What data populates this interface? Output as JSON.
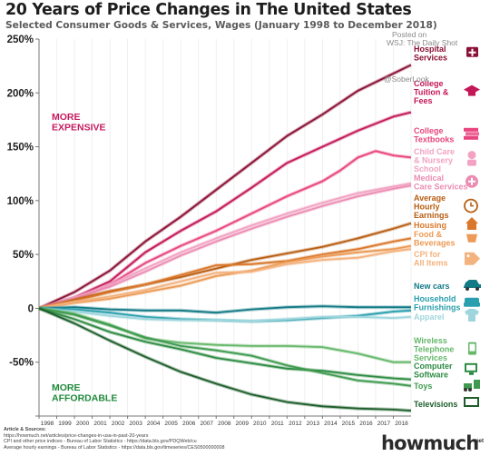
{
  "header": {
    "title": "20 Years of Price Changes in The United States",
    "subtitle": "Selected Consumer Goods & Services, Wages (January 1998 to December 2018)"
  },
  "credits": {
    "posted_on": "Posted on",
    "source": "WSJ: The Daily Shot",
    "twitter": "@SoberLook"
  },
  "sources": {
    "heading": "Article & Sources:",
    "lines": [
      "https://howmuch.net/articles/price-changes-in-usa-in-past-20-years",
      "CPI and other price indices - Bureau of Labor Statistics - https://data.bls.gov/PDQWeb/cu",
      "Average hourly earnings - Bureau of Labor Statistics - https://data.bls.gov/timeseries/CES0500000008"
    ]
  },
  "logo": {
    "name": "howmuch",
    "suffix": "net"
  },
  "chart_data": {
    "type": "line",
    "title": "20 Years of Price Changes in The United States",
    "subtitle": "Selected Consumer Goods & Services, Wages (January 1998 to December 2018)",
    "x_ticks": [
      "1998",
      "1999",
      "2000",
      "2001",
      "2002",
      "2003",
      "2004",
      "2005",
      "2006",
      "2007",
      "2008",
      "2009",
      "2010",
      "2011",
      "2012",
      "2013",
      "2014",
      "2015",
      "2016",
      "2017",
      "2018"
    ],
    "xlim": [
      1998,
      2019
    ],
    "ylim": [
      -100,
      250
    ],
    "y_ticks": [
      -100,
      -50,
      0,
      50,
      100,
      150,
      200,
      250
    ],
    "y_tick_labels": [
      "",
      "-50%",
      "0",
      "50%",
      "100%",
      "150%",
      "200%",
      "250%"
    ],
    "grid": "vertical",
    "annotations": [
      {
        "text": "MORE EXPENSIVE",
        "color": "#c51a5e"
      },
      {
        "text": "MORE AFFORDABLE",
        "color": "#1f8a3a"
      }
    ],
    "series": [
      {
        "name": "Hospital Services",
        "color": "#8b1035",
        "icon": "hospital-icon",
        "x": [
          1998,
          2000,
          2002,
          2004,
          2006,
          2008,
          2010,
          2012,
          2014,
          2016,
          2018,
          2019
        ],
        "values": [
          0,
          15,
          35,
          62,
          85,
          110,
          135,
          160,
          180,
          202,
          218,
          226
        ]
      },
      {
        "name": "College Tuition & Fees",
        "color": "#c41757",
        "icon": "graduation-cap-icon",
        "x": [
          1998,
          2000,
          2002,
          2004,
          2006,
          2008,
          2010,
          2012,
          2014,
          2016,
          2018,
          2019
        ],
        "values": [
          0,
          10,
          25,
          52,
          72,
          90,
          112,
          135,
          150,
          165,
          178,
          182
        ]
      },
      {
        "name": "College Textbooks",
        "color": "#e8457e",
        "icon": "books-icon",
        "x": [
          1998,
          2000,
          2002,
          2004,
          2006,
          2008,
          2010,
          2012,
          2014,
          2015,
          2016,
          2017,
          2018,
          2019
        ],
        "values": [
          0,
          8,
          22,
          42,
          58,
          72,
          88,
          104,
          118,
          128,
          140,
          146,
          142,
          140
        ]
      },
      {
        "name": "Child Care & Nursery School",
        "color": "#f2a2c2",
        "icon": "child-icon",
        "x": [
          1998,
          2000,
          2002,
          2004,
          2006,
          2008,
          2010,
          2012,
          2014,
          2016,
          2018,
          2019
        ],
        "values": [
          0,
          10,
          22,
          37,
          52,
          65,
          77,
          88,
          98,
          107,
          113,
          116
        ]
      },
      {
        "name": "Medical Care Services",
        "color": "#eb8db3",
        "icon": "medical-icon",
        "x": [
          1998,
          2000,
          2002,
          2004,
          2006,
          2008,
          2010,
          2012,
          2014,
          2016,
          2018,
          2019
        ],
        "values": [
          0,
          9,
          20,
          34,
          49,
          62,
          74,
          85,
          95,
          104,
          111,
          114
        ]
      },
      {
        "name": "Average Hourly Earnings",
        "color": "#b85d12",
        "icon": "clock-dollar-icon",
        "x": [
          1998,
          2000,
          2002,
          2004,
          2006,
          2008,
          2010,
          2012,
          2014,
          2016,
          2018,
          2019
        ],
        "values": [
          0,
          8,
          16,
          22,
          29,
          37,
          45,
          51,
          57,
          65,
          74,
          79
        ]
      },
      {
        "name": "Housing",
        "color": "#d9772a",
        "icon": "house-icon",
        "x": [
          1998,
          2000,
          2002,
          2004,
          2006,
          2008,
          2010,
          2012,
          2014,
          2016,
          2018,
          2019
        ],
        "values": [
          0,
          7,
          15,
          22,
          31,
          40,
          41,
          44,
          50,
          55,
          62,
          65
        ]
      },
      {
        "name": "Food & Beverages",
        "color": "#ec9a55",
        "icon": "food-icon",
        "x": [
          1998,
          2000,
          2002,
          2004,
          2006,
          2008,
          2010,
          2012,
          2014,
          2016,
          2018,
          2019
        ],
        "values": [
          0,
          5,
          9,
          15,
          21,
          30,
          35,
          43,
          48,
          52,
          55,
          58
        ]
      },
      {
        "name": "CPI for All Items",
        "color": "#f3b27e",
        "icon": "price-tag-icon",
        "x": [
          1998,
          2000,
          2002,
          2004,
          2006,
          2008,
          2010,
          2012,
          2014,
          2016,
          2018,
          2019
        ],
        "values": [
          0,
          6,
          11,
          17,
          25,
          33,
          34,
          41,
          45,
          47,
          53,
          55
        ]
      },
      {
        "name": "New cars",
        "color": "#137a86",
        "icon": "car-icon",
        "x": [
          1998,
          2000,
          2002,
          2004,
          2006,
          2008,
          2010,
          2012,
          2014,
          2016,
          2018,
          2019
        ],
        "values": [
          0,
          1,
          -1,
          -2,
          -2,
          -4,
          -1,
          1,
          2,
          1,
          1,
          1
        ]
      },
      {
        "name": "Household Furnishings",
        "color": "#2a9fad",
        "icon": "sofa-icon",
        "x": [
          1998,
          2000,
          2002,
          2004,
          2006,
          2008,
          2010,
          2012,
          2014,
          2016,
          2018,
          2019
        ],
        "values": [
          0,
          -1,
          -4,
          -8,
          -10,
          -11,
          -12,
          -11,
          -9,
          -7,
          -3,
          -2
        ]
      },
      {
        "name": "Apparel",
        "color": "#9fd6dd",
        "icon": "shirt-icon",
        "x": [
          1998,
          2000,
          2002,
          2004,
          2006,
          2008,
          2010,
          2012,
          2014,
          2016,
          2018,
          2019
        ],
        "values": [
          0,
          -3,
          -7,
          -10,
          -11,
          -11,
          -12,
          -10,
          -8,
          -8,
          -9,
          -8
        ]
      },
      {
        "name": "Wireless Telephone Services",
        "color": "#66b86b",
        "icon": "phone-icon",
        "x": [
          1998,
          2000,
          2002,
          2004,
          2006,
          2008,
          2010,
          2012,
          2014,
          2016,
          2018,
          2019
        ],
        "values": [
          0,
          -5,
          -15,
          -28,
          -32,
          -34,
          -35,
          -35,
          -36,
          -42,
          -50,
          -50
        ]
      },
      {
        "name": "Computer Software",
        "color": "#2e8b43",
        "icon": "computer-icon",
        "x": [
          1998,
          2000,
          2002,
          2004,
          2006,
          2008,
          2010,
          2012,
          2014,
          2016,
          2018,
          2019
        ],
        "values": [
          0,
          -10,
          -22,
          -31,
          -38,
          -46,
          -51,
          -56,
          -58,
          -62,
          -65,
          -66
        ]
      },
      {
        "name": "Toys",
        "color": "#3f9a4f",
        "icon": "toys-icon",
        "x": [
          1998,
          2000,
          2002,
          2004,
          2006,
          2008,
          2010,
          2012,
          2014,
          2016,
          2018,
          2019
        ],
        "values": [
          0,
          -6,
          -16,
          -27,
          -35,
          -39,
          -44,
          -53,
          -60,
          -67,
          -70,
          -72
        ]
      },
      {
        "name": "Televisions",
        "color": "#1d5e2b",
        "icon": "tv-icon",
        "x": [
          1998,
          2000,
          2002,
          2004,
          2006,
          2008,
          2010,
          2012,
          2014,
          2016,
          2018,
          2019
        ],
        "values": [
          0,
          -14,
          -30,
          -45,
          -59,
          -70,
          -80,
          -87,
          -91,
          -93,
          -94,
          -95
        ]
      }
    ],
    "labels": [
      {
        "series": "Hospital Services",
        "lines": [
          "Hospital",
          "Services"
        ]
      },
      {
        "series": "College Tuition & Fees",
        "lines": [
          "College",
          "Tuition &",
          "Fees"
        ]
      },
      {
        "series": "College Textbooks",
        "lines": [
          "College",
          "Textbooks"
        ]
      },
      {
        "series": "Child Care & Nursery School",
        "lines": [
          "Child Care",
          "& Nursery",
          "School"
        ]
      },
      {
        "series": "Medical Care Services",
        "lines": [
          "Medical",
          "Care Services"
        ]
      },
      {
        "series": "Average Hourly Earnings",
        "lines": [
          "Average",
          "Hourly",
          "Earnings"
        ]
      },
      {
        "series": "Housing",
        "lines": [
          "Housing"
        ]
      },
      {
        "series": "Food & Beverages",
        "lines": [
          "Food &",
          "Beverages"
        ]
      },
      {
        "series": "CPI for All Items",
        "lines": [
          "CPI for",
          "All Items"
        ]
      },
      {
        "series": "New cars",
        "lines": [
          "New cars"
        ]
      },
      {
        "series": "Household Furnishings",
        "lines": [
          "Household",
          "Furnishings"
        ]
      },
      {
        "series": "Apparel",
        "lines": [
          "Apparel"
        ]
      },
      {
        "series": "Wireless Telephone Services",
        "lines": [
          "Wireless",
          "Telephone",
          "Services"
        ]
      },
      {
        "series": "Computer Software",
        "lines": [
          "Computer",
          "Software"
        ]
      },
      {
        "series": "Toys",
        "lines": [
          "Toys"
        ]
      },
      {
        "series": "Televisions",
        "lines": [
          "Televisions"
        ]
      }
    ]
  }
}
